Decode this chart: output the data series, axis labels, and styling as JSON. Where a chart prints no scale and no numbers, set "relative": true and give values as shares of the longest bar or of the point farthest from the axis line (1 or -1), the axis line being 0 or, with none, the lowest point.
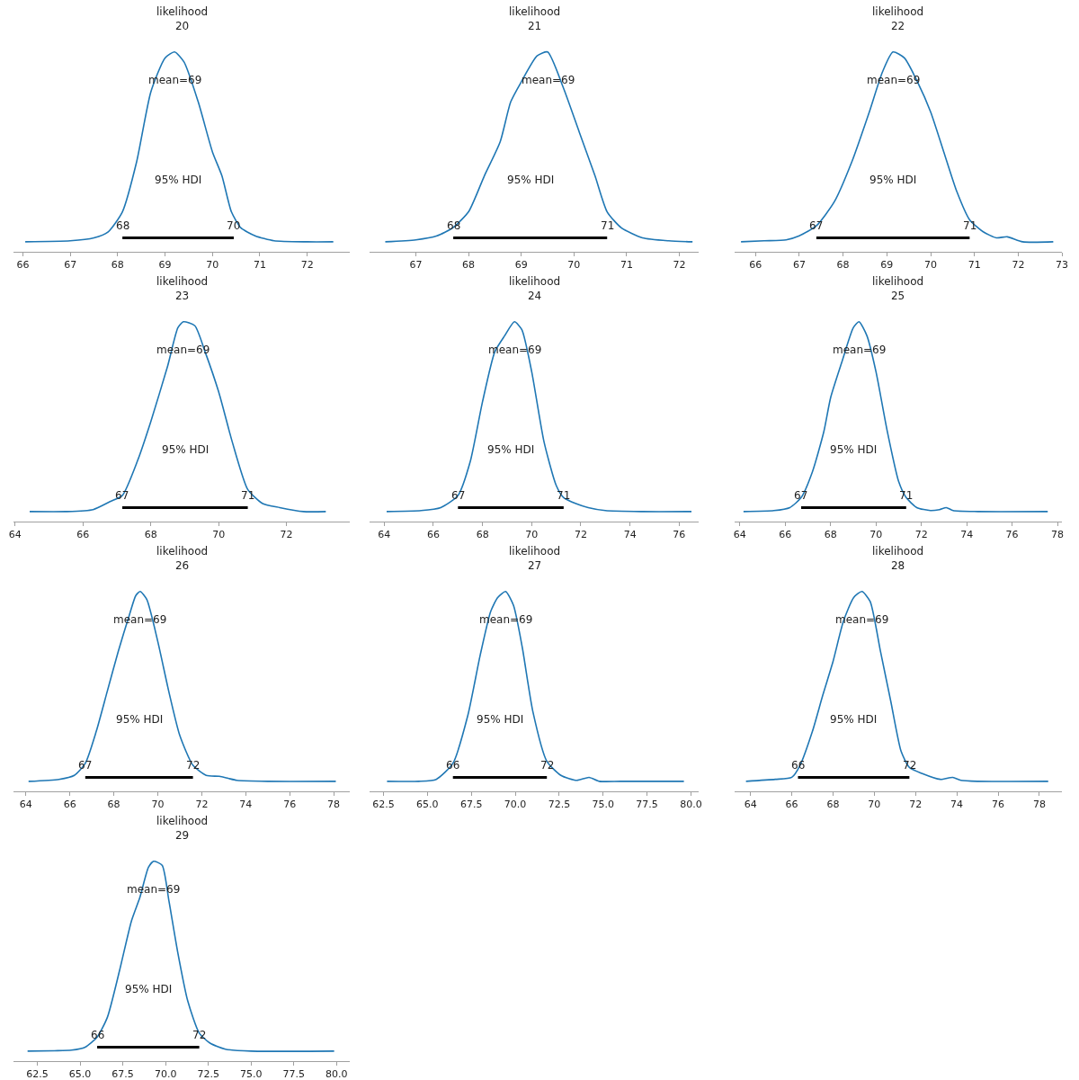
{
  "chart_data": [
    {
      "type": "line",
      "title": "likelihood\n20",
      "relative": true,
      "xlim": [
        65.8,
        72.9
      ],
      "xticks": [
        66,
        67,
        68,
        69,
        70,
        71,
        72
      ],
      "series": [
        {
          "color": "#1f77b4",
          "x": [
            66.05,
            67,
            67.5,
            67.8,
            68.1,
            68.4,
            68.7,
            69.0,
            69.2,
            69.4,
            69.7,
            70.0,
            70.2,
            70.4,
            70.6,
            70.9,
            71.3,
            72.0,
            72.55
          ],
          "values": [
            0.05,
            0.055,
            0.07,
            0.1,
            0.2,
            0.45,
            0.8,
            0.97,
            1,
            0.95,
            0.75,
            0.5,
            0.38,
            0.2,
            0.12,
            0.08,
            0.055,
            0.05,
            0.05
          ]
        },
        {
          "color": "#000000",
          "x": [
            68.1,
            70.45
          ],
          "values": [
            0.07,
            0.07
          ]
        }
      ],
      "annotations": [
        "mean=69",
        "95% HDI",
        "68",
        "70"
      ]
    },
    {
      "type": "line",
      "title": "likelihood\n21",
      "relative": true,
      "xlim": [
        66.12,
        72.37
      ],
      "xticks": [
        67,
        68,
        69,
        70,
        71,
        72
      ],
      "series": [
        {
          "color": "#1f77b4",
          "x": [
            66.42,
            67,
            67.4,
            67.7,
            68.0,
            68.3,
            68.6,
            68.8,
            69.0,
            69.3,
            69.5,
            69.8,
            70.1,
            70.4,
            70.63,
            70.9,
            71.3,
            71.8,
            72.25
          ],
          "values": [
            0.05,
            0.06,
            0.08,
            0.12,
            0.2,
            0.38,
            0.55,
            0.75,
            0.85,
            0.98,
            1,
            0.82,
            0.6,
            0.38,
            0.2,
            0.12,
            0.07,
            0.055,
            0.05
          ]
        },
        {
          "color": "#000000",
          "x": [
            67.71,
            70.63
          ],
          "values": [
            0.07,
            0.07
          ]
        }
      ],
      "annotations": [
        "mean=69",
        "95% HDI",
        "68",
        "71"
      ]
    },
    {
      "type": "line",
      "title": "likelihood\n22",
      "relative": true,
      "xlim": [
        65.52,
        73.0
      ],
      "xticks": [
        66,
        67,
        68,
        69,
        70,
        71,
        72,
        73
      ],
      "series": [
        {
          "color": "#1f77b4",
          "x": [
            65.67,
            66.2,
            66.7,
            67.0,
            67.39,
            67.8,
            68.2,
            68.6,
            68.9,
            69.14,
            69.4,
            69.7,
            70.0,
            70.3,
            70.6,
            70.89,
            71.2,
            71.5,
            71.75,
            72.1,
            72.8
          ],
          "values": [
            0.05,
            0.055,
            0.06,
            0.08,
            0.13,
            0.25,
            0.45,
            0.7,
            0.9,
            1,
            0.97,
            0.85,
            0.7,
            0.5,
            0.3,
            0.16,
            0.1,
            0.07,
            0.075,
            0.05,
            0.05
          ]
        },
        {
          "color": "#000000",
          "x": [
            67.39,
            70.89
          ],
          "values": [
            0.07,
            0.07
          ]
        }
      ],
      "annotations": [
        "mean=69",
        "95% HDI",
        "67",
        "71"
      ]
    },
    {
      "type": "line",
      "title": "likelihood\n23",
      "relative": true,
      "xlim": [
        63.95,
        73.87
      ],
      "xticks": [
        64,
        66,
        68,
        70,
        72
      ],
      "series": [
        {
          "color": "#1f77b4",
          "x": [
            64.43,
            65.5,
            66.3,
            66.8,
            67.16,
            67.6,
            68.0,
            68.5,
            68.8,
            68.96,
            69.3,
            69.6,
            70.0,
            70.4,
            70.86,
            71.3,
            71.8,
            72.5,
            73.16
          ],
          "values": [
            0.05,
            0.05,
            0.06,
            0.1,
            0.13,
            0.3,
            0.5,
            0.78,
            0.97,
            1,
            0.98,
            0.85,
            0.65,
            0.4,
            0.16,
            0.09,
            0.07,
            0.05,
            0.05
          ]
        },
        {
          "color": "#000000",
          "x": [
            67.16,
            70.86
          ],
          "values": [
            0.07,
            0.07
          ]
        }
      ],
      "annotations": [
        "mean=69",
        "95% HDI",
        "67",
        "71"
      ]
    },
    {
      "type": "line",
      "title": "likelihood\n24",
      "relative": true,
      "xlim": [
        63.4,
        76.8
      ],
      "xticks": [
        64,
        66,
        68,
        70,
        72,
        74,
        76
      ],
      "series": [
        {
          "color": "#1f77b4",
          "x": [
            64.1,
            65.5,
            66.3,
            67.0,
            67.5,
            68.0,
            68.5,
            68.9,
            69.3,
            69.6,
            70.0,
            70.5,
            71.0,
            71.3,
            71.8,
            72.3,
            73,
            74.5,
            76.5
          ],
          "values": [
            0.05,
            0.055,
            0.07,
            0.13,
            0.3,
            0.6,
            0.85,
            0.93,
            1,
            0.96,
            0.75,
            0.4,
            0.18,
            0.12,
            0.09,
            0.07,
            0.055,
            0.05,
            0.05
          ]
        },
        {
          "color": "#000000",
          "x": [
            67.0,
            71.3
          ],
          "values": [
            0.07,
            0.07
          ]
        }
      ],
      "annotations": [
        "mean=69",
        "95% HDI",
        "67",
        "71"
      ]
    },
    {
      "type": "line",
      "title": "likelihood\n25",
      "relative": true,
      "xlim": [
        63.76,
        78.2
      ],
      "xticks": [
        64,
        66,
        68,
        70,
        72,
        74,
        76,
        78
      ],
      "series": [
        {
          "color": "#1f77b4",
          "x": [
            64.16,
            65.5,
            66.2,
            66.7,
            67.2,
            67.7,
            68.0,
            68.5,
            69.0,
            69.25,
            69.6,
            70.0,
            70.5,
            71.0,
            71.33,
            71.8,
            72.4,
            72.8,
            73.1,
            73.4,
            74.5,
            77.57
          ],
          "values": [
            0.05,
            0.055,
            0.07,
            0.12,
            0.25,
            0.45,
            0.62,
            0.8,
            0.97,
            1,
            0.93,
            0.75,
            0.45,
            0.2,
            0.12,
            0.07,
            0.055,
            0.06,
            0.07,
            0.055,
            0.05,
            0.05
          ]
        },
        {
          "color": "#000000",
          "x": [
            66.7,
            71.33
          ],
          "values": [
            0.07,
            0.07
          ]
        }
      ],
      "annotations": [
        "mean=69",
        "95% HDI",
        "67",
        "71"
      ]
    },
    {
      "type": "line",
      "title": "likelihood\n26",
      "relative": true,
      "xlim": [
        63.43,
        78.74
      ],
      "xticks": [
        64,
        66,
        68,
        70,
        72,
        74,
        76,
        78
      ],
      "series": [
        {
          "color": "#1f77b4",
          "x": [
            64.12,
            65.5,
            66.2,
            66.7,
            67.2,
            67.7,
            68.2,
            68.7,
            69.0,
            69.2,
            69.5,
            70.0,
            70.5,
            71.0,
            71.6,
            72.2,
            72.8,
            73.2,
            73.6,
            75,
            78.1
          ],
          "values": [
            0.05,
            0.06,
            0.08,
            0.14,
            0.3,
            0.5,
            0.7,
            0.88,
            0.98,
            1,
            0.96,
            0.75,
            0.5,
            0.28,
            0.13,
            0.08,
            0.075,
            0.065,
            0.055,
            0.05,
            0.05
          ]
        },
        {
          "color": "#000000",
          "x": [
            66.7,
            71.6
          ],
          "values": [
            0.07,
            0.07
          ]
        }
      ],
      "annotations": [
        "mean=69",
        "95% HDI",
        "67",
        "72"
      ]
    },
    {
      "type": "line",
      "title": "likelihood\n27",
      "relative": true,
      "xlim": [
        61.7,
        80.45
      ],
      "xticks": [
        {
          "value": 62.5,
          "label": "62.5"
        },
        {
          "value": 65,
          "label": "65.0"
        },
        {
          "value": 67.5,
          "label": "67.5"
        },
        {
          "value": 70,
          "label": "70.0"
        },
        {
          "value": 72.5,
          "label": "72.5"
        },
        {
          "value": 75,
          "label": "75.0"
        },
        {
          "value": 77.5,
          "label": "77.5"
        },
        {
          "value": 80,
          "label": "80.0"
        }
      ],
      "series": [
        {
          "color": "#1f77b4",
          "x": [
            62.7,
            64.5,
            65.5,
            66.45,
            67.3,
            68.0,
            68.6,
            69.0,
            69.45,
            69.9,
            70.4,
            71.0,
            71.8,
            72.6,
            73.5,
            74.2,
            74.8,
            76,
            79.6
          ],
          "values": [
            0.05,
            0.05,
            0.06,
            0.14,
            0.38,
            0.68,
            0.9,
            0.97,
            1,
            0.93,
            0.72,
            0.4,
            0.15,
            0.08,
            0.055,
            0.07,
            0.05,
            0.05,
            0.05
          ]
        },
        {
          "color": "#000000",
          "x": [
            66.45,
            71.8
          ],
          "values": [
            0.07,
            0.07
          ]
        }
      ],
      "annotations": [
        "mean=69",
        "95% HDI",
        "66",
        "72"
      ]
    },
    {
      "type": "line",
      "title": "likelihood\n28",
      "relative": true,
      "xlim": [
        63.22,
        79.1
      ],
      "xticks": [
        64,
        66,
        68,
        70,
        72,
        74,
        76,
        78
      ],
      "series": [
        {
          "color": "#1f77b4",
          "x": [
            63.78,
            65.2,
            66.0,
            66.4,
            67.0,
            67.5,
            68.0,
            68.5,
            69.0,
            69.4,
            69.8,
            70.3,
            70.8,
            71.3,
            71.7,
            72.3,
            73.2,
            73.8,
            74.2,
            75,
            78.43
          ],
          "values": [
            0.05,
            0.06,
            0.07,
            0.13,
            0.3,
            0.48,
            0.65,
            0.85,
            0.97,
            1,
            0.95,
            0.7,
            0.45,
            0.2,
            0.12,
            0.09,
            0.06,
            0.07,
            0.055,
            0.05,
            0.05
          ]
        },
        {
          "color": "#000000",
          "x": [
            66.3,
            71.7
          ],
          "values": [
            0.07,
            0.07
          ]
        }
      ],
      "annotations": [
        "mean=69",
        "95% HDI",
        "66",
        "72"
      ]
    },
    {
      "type": "line",
      "title": "likelihood\n29",
      "relative": true,
      "xlim": [
        61.1,
        80.78
      ],
      "xticks": [
        {
          "value": 62.5,
          "label": "62.5"
        },
        {
          "value": 65,
          "label": "65.0"
        },
        {
          "value": 67.5,
          "label": "67.5"
        },
        {
          "value": 70,
          "label": "70.0"
        },
        {
          "value": 72.5,
          "label": "72.5"
        },
        {
          "value": 75,
          "label": "75.0"
        },
        {
          "value": 77.5,
          "label": "77.5"
        },
        {
          "value": 80,
          "label": "80.0"
        }
      ],
      "series": [
        {
          "color": "#1f77b4",
          "x": [
            61.93,
            63.5,
            64.5,
            65.3,
            66.0,
            66.6,
            67.3,
            68.0,
            68.5,
            69.0,
            69.3,
            69.8,
            70.2,
            70.7,
            71.3,
            71.97,
            72.6,
            73.5,
            75,
            79.86
          ],
          "values": [
            0.05,
            0.052,
            0.055,
            0.07,
            0.12,
            0.22,
            0.45,
            0.7,
            0.82,
            0.97,
            1,
            0.98,
            0.8,
            0.55,
            0.3,
            0.14,
            0.09,
            0.06,
            0.05,
            0.05
          ]
        },
        {
          "color": "#000000",
          "x": [
            66.0,
            71.97
          ],
          "values": [
            0.07,
            0.07
          ]
        }
      ],
      "annotations": [
        "mean=69",
        "95% HDI",
        "66",
        "72"
      ]
    }
  ]
}
